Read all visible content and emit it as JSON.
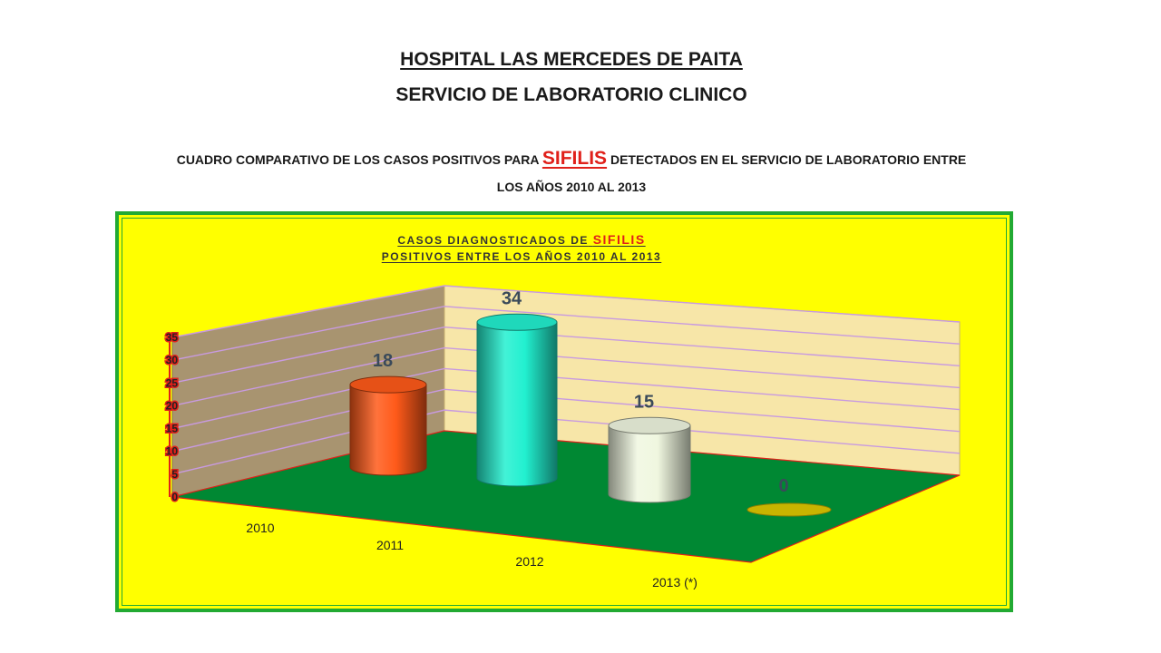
{
  "header": {
    "line1": "HOSPITAL LAS  MERCEDES DE PAITA",
    "line2": "SERVICIO DE LABORATORIO CLINICO",
    "desc_before": "CUADRO COMPARATIVO DE LOS CASOS POSITIVOS PARA",
    "desc_highlight": "SIFILIS",
    "desc_after": "DETECTADOS EN EL SERVICIO DE LABORATORIO ENTRE",
    "desc_line2": "LOS AÑOS 2010 AL 2013"
  },
  "chart_data": {
    "type": "bar",
    "title_prefix": "CASOS DIAGNOSTICADOS DE",
    "title_highlight": "SIFILIS",
    "subtitle": "POSITIVOS ENTRE LOS AÑOS 2010 AL 2013",
    "categories": [
      "2010",
      "2011",
      "2012",
      "2013 (*)"
    ],
    "values": [
      18,
      34,
      15,
      0
    ],
    "data_labels": [
      "18",
      "34",
      "15",
      "0"
    ],
    "y_ticks": [
      "0",
      "5",
      "10",
      "15",
      "20",
      "25",
      "30",
      "35"
    ],
    "ylim": [
      0,
      35
    ],
    "bar_colors": [
      "#ff5a1a",
      "#22f0d0",
      "#f0f7e0",
      "#c8b400"
    ],
    "colors": {
      "background": "#ffff00",
      "frame": "#22aa33",
      "floor": "#008833",
      "left_wall": "#a89470",
      "back_wall": "#f7e6a8",
      "gridline": "#c89ae0",
      "highlight": "#e0201a"
    }
  }
}
